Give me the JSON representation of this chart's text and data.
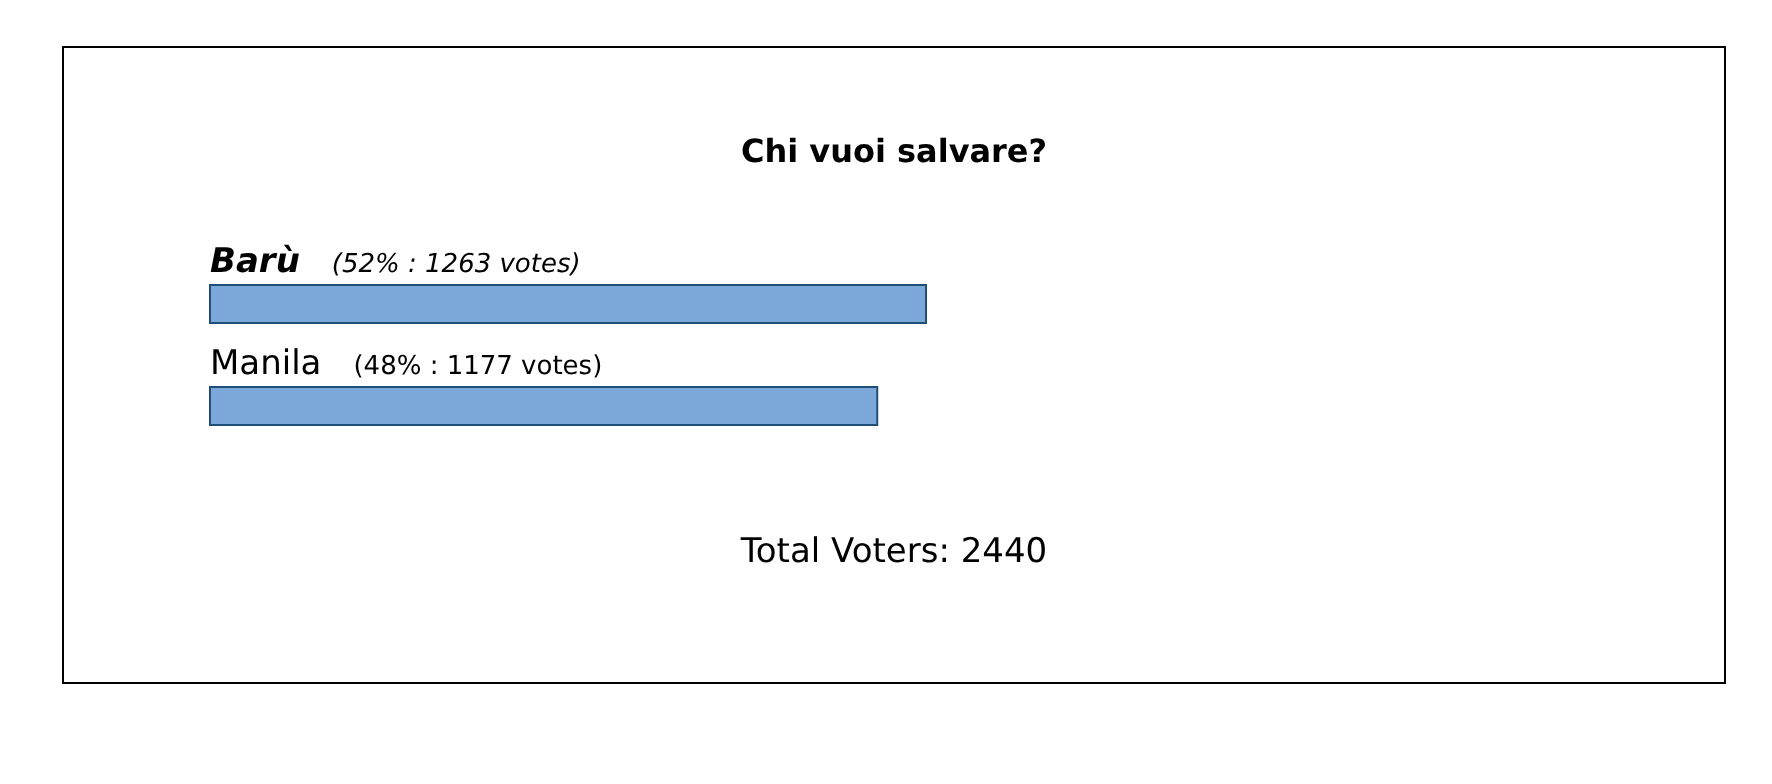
{
  "chart_data": {
    "type": "bar",
    "orientation": "horizontal",
    "title": "Chi vuoi salvare?",
    "categories": [
      "Barù",
      "Manila"
    ],
    "values": [
      1263,
      1177
    ],
    "value_labels": [
      "(52% : 1263 votes)",
      "(48% : 1177 votes)"
    ],
    "color": "#7ba7d9",
    "annotations": [
      "Total Voters: 2440"
    ]
  }
}
